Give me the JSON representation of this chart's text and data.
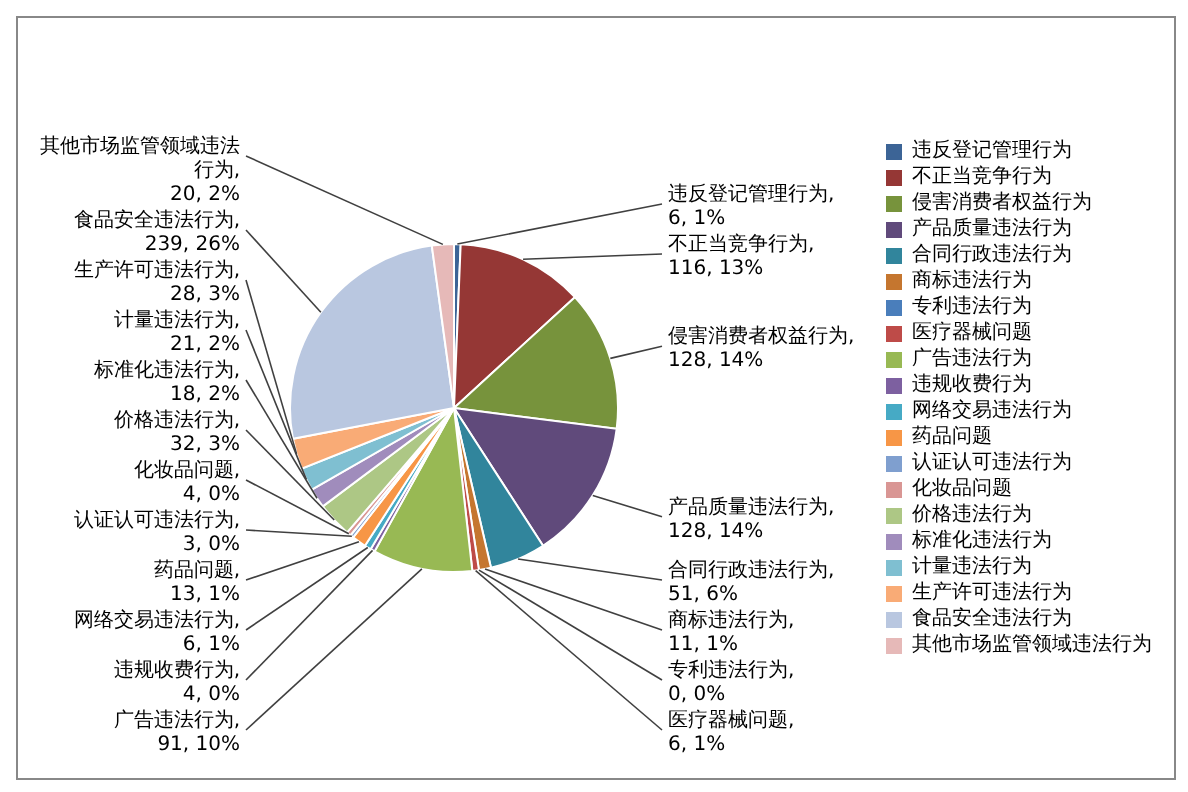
{
  "chart_data": {
    "type": "pie",
    "categories": [
      "违反登记管理行为",
      "不正当竞争行为",
      "侵害消费者权益行为",
      "产品质量违法行为",
      "合同行政违法行为",
      "商标违法行为",
      "专利违法行为",
      "医疗器械问题",
      "广告违法行为",
      "违规收费行为",
      "网络交易违法行为",
      "药品问题",
      "认证认可违法行为",
      "化妆品问题",
      "价格违法行为",
      "标准化违法行为",
      "计量违法行为",
      "生产许可违法行为",
      "食品安全违法行为",
      "其他市场监管领域违法行为"
    ],
    "values": [
      6,
      116,
      128,
      128,
      51,
      11,
      0,
      6,
      91,
      4,
      6,
      13,
      3,
      4,
      32,
      18,
      21,
      28,
      239,
      20
    ],
    "colors": [
      "#3c6496",
      "#953735",
      "#77933c",
      "#604a7b",
      "#31859c",
      "#c5762f",
      "#4a7ebb",
      "#be4b48",
      "#98b954",
      "#7d60a0",
      "#46aac5",
      "#f79646",
      "#7f9fcf",
      "#d99694",
      "#adc785",
      "#a08cbc",
      "#7fbfd1",
      "#f9ab76",
      "#b9c7e0",
      "#e6b9b8"
    ],
    "value_labels": [
      "违反登记管理行为, 6, 1%",
      "不正当竞争行为, 116, 13%",
      "侵害消费者权益行为, 128, 14%",
      "产品质量违法行为, 128, 14%",
      "合同行政违法行为, 51, 6%",
      "商标违法行为, 11, 1%",
      "专利违法行为, 0, 0%",
      "医疗器械问题, 6, 1%",
      "广告违法行为, 91, 10%",
      "违规收费行为, 4, 0%",
      "网络交易违法行为, 6, 1%",
      "药品问题, 13, 1%",
      "认证认可违法行为, 3, 0%",
      "化妆品问题, 4, 0%",
      "价格违法行为, 32, 3%",
      "标准化违法行为, 18, 2%",
      "计量违法行为, 21, 2%",
      "生产许可违法行为, 28, 3%",
      "食品安全违法行为, 239, 26%",
      "其他市场监管领域违法行为, 20, 2%"
    ],
    "legend": "right"
  }
}
